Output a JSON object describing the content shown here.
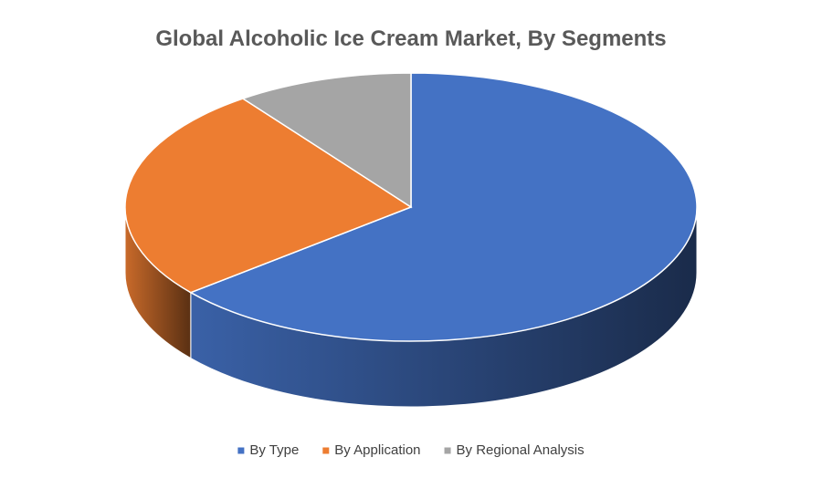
{
  "chart_data": {
    "type": "pie",
    "title": "Global Alcoholic Ice Cream Market, By Segments",
    "categories": [
      "By Type",
      "By Application",
      "By Regional Analysis"
    ],
    "values": [
      64,
      26,
      10
    ],
    "colors": [
      "#4472c4",
      "#ed7d31",
      "#a5a5a5"
    ],
    "legend": "bottom"
  }
}
